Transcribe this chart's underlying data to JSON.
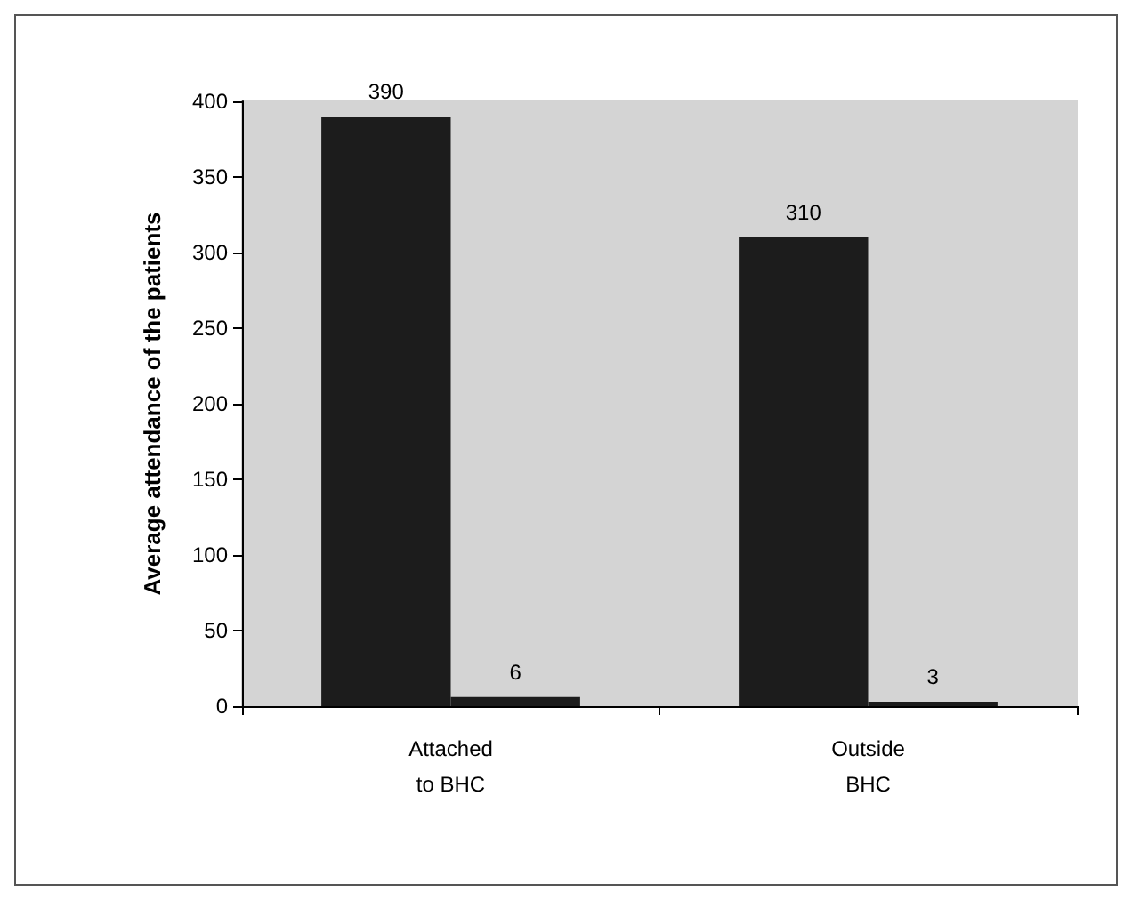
{
  "chart_data": {
    "type": "bar",
    "ylabel": "Average attendance of the patients",
    "categories": [
      "Attached\nto BHC",
      "Outside\nBHC"
    ],
    "series": [
      {
        "color": "#1c1c1c",
        "values": [
          390,
          310
        ]
      },
      {
        "color": "#1c1c1c",
        "values": [
          6,
          3
        ]
      }
    ],
    "ylim": [
      0,
      400
    ],
    "yticks": [
      0,
      50,
      100,
      150,
      200,
      250,
      300,
      350,
      400
    ],
    "data_labels": true
  }
}
